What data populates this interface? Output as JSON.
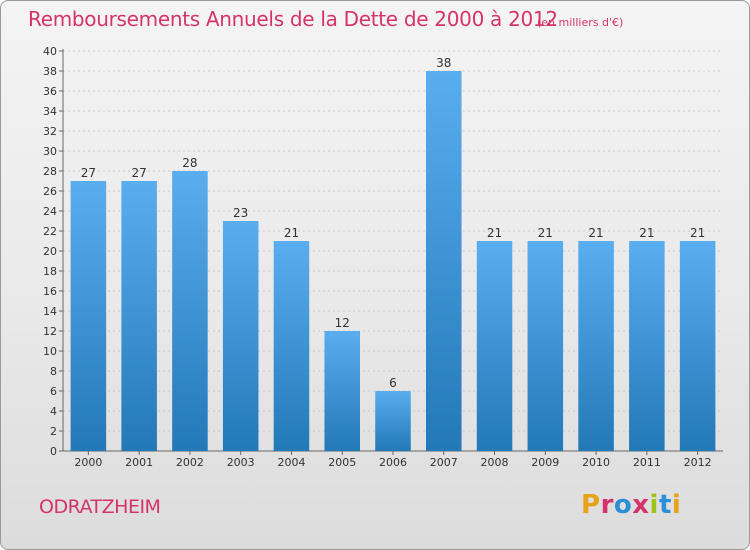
{
  "header": {
    "title": "Remboursements Annuels de la Dette de 2000 à 2012",
    "subtitle": "(en milliers d'€)"
  },
  "footer": {
    "commune": "ODRATZHEIM",
    "logo_text": "Proxiti",
    "logo_colors": [
      "#e8a21a",
      "#d6336b",
      "#2a8fd4",
      "#d6336b",
      "#9ec31c",
      "#2a8fd4",
      "#e8a21a"
    ]
  },
  "chart_data": {
    "type": "bar",
    "categories": [
      "2000",
      "2001",
      "2002",
      "2003",
      "2004",
      "2005",
      "2006",
      "2007",
      "2008",
      "2009",
      "2010",
      "2011",
      "2012"
    ],
    "values": [
      27,
      27,
      28,
      23,
      21,
      12,
      6,
      38,
      21,
      21,
      21,
      21,
      21
    ],
    "title": "Remboursements Annuels de la Dette de 2000 à 2012",
    "subtitle": "(en milliers d'€)",
    "ylim": [
      0,
      40
    ],
    "ytick_step": 2,
    "grid": true,
    "bar_color_top": "#5aaef0",
    "bar_color_bottom": "#2378b8"
  }
}
